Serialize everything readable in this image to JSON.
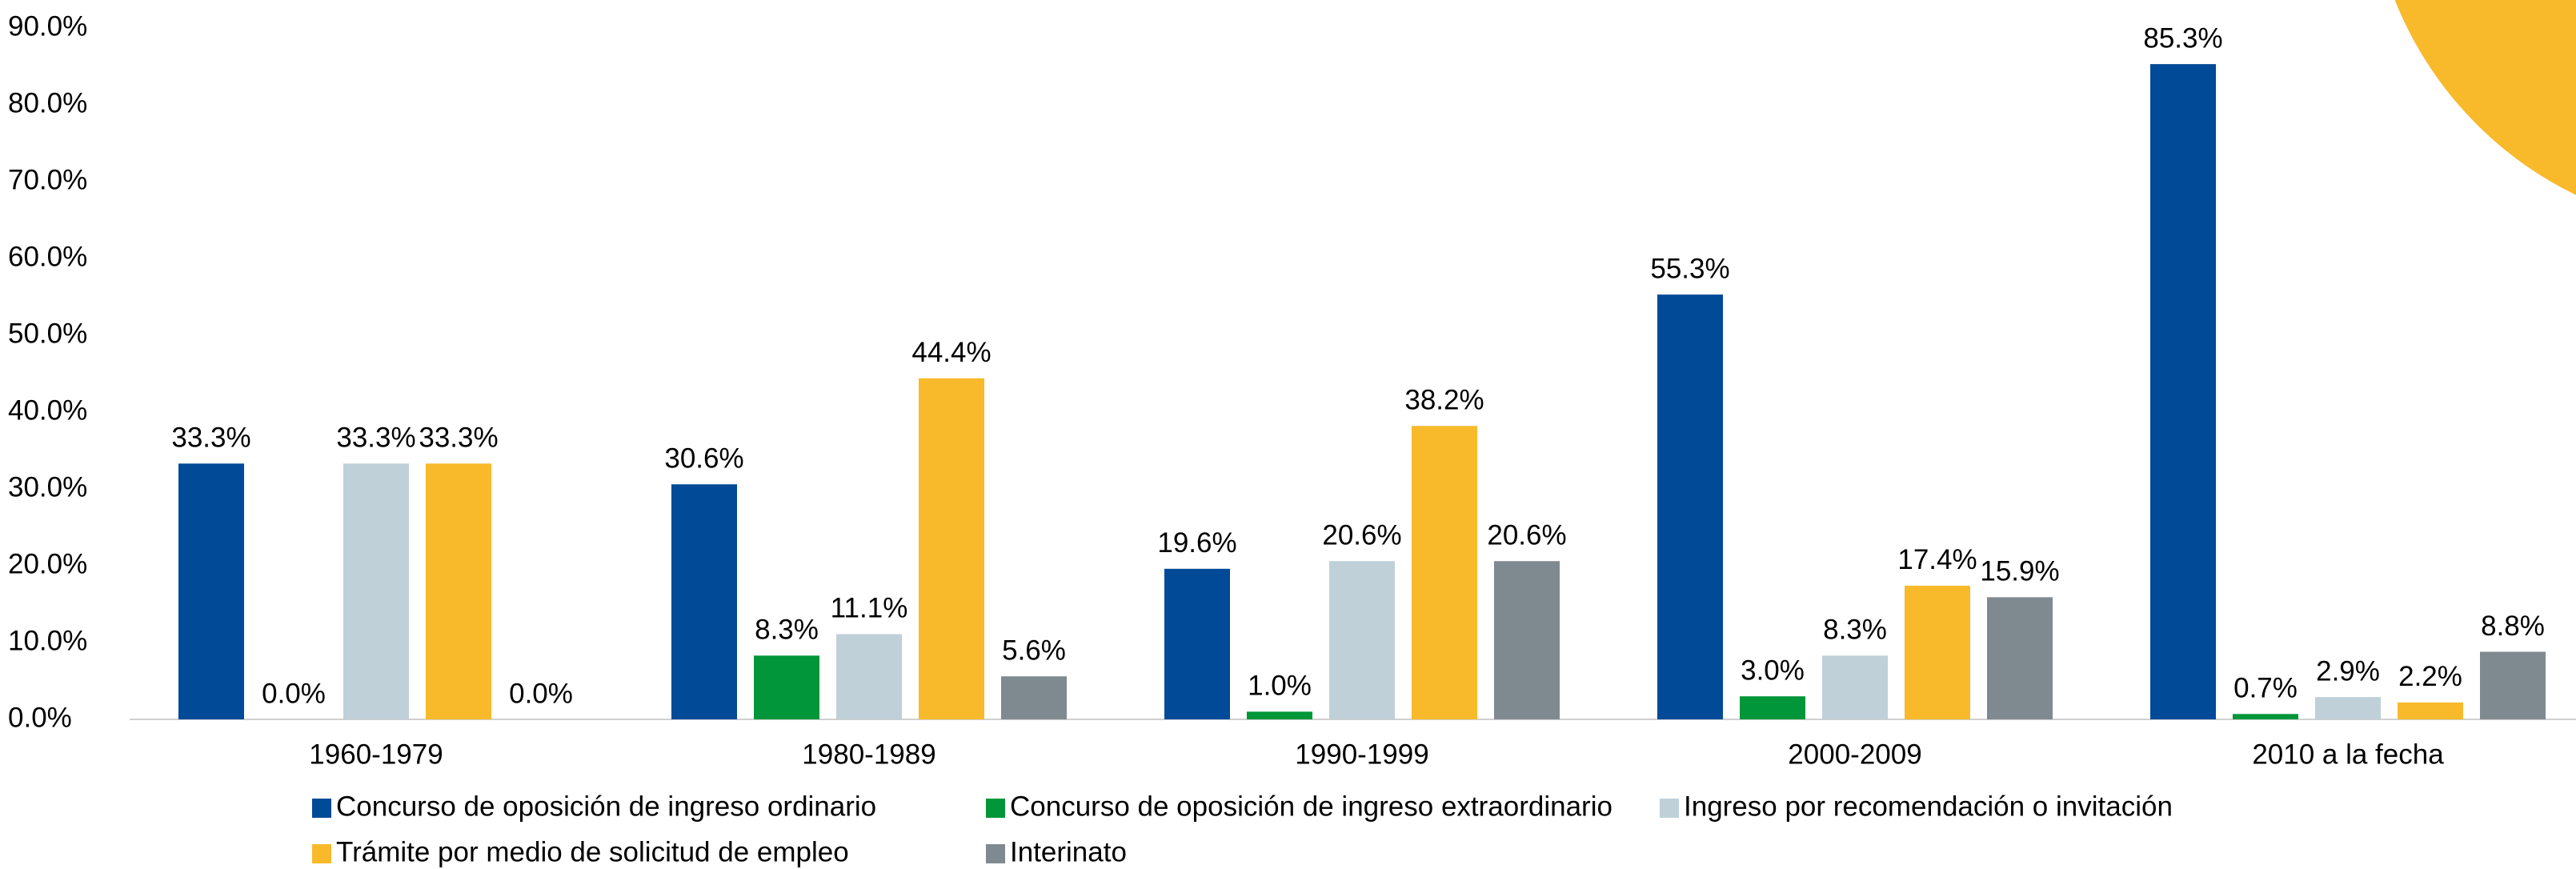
{
  "chart_data": {
    "type": "bar",
    "categories": [
      "1960-1979",
      "1980-1989",
      "1990-1999",
      "2000-2009",
      "2010 a la fecha"
    ],
    "series": [
      {
        "name": "Concurso de oposición de ingreso ordinario",
        "color": "#004a98",
        "values": [
          33.3,
          30.6,
          19.6,
          55.3,
          85.3
        ],
        "value_labels": [
          "33.3%",
          "30.6%",
          "19.6%",
          "55.3%",
          "85.3%"
        ]
      },
      {
        "name": "Concurso de oposición de ingreso extraordinario",
        "color": "#009639",
        "values": [
          0,
          8.3,
          1.0,
          3.0,
          0.7
        ],
        "value_labels": [
          "0.0%",
          "8.3%",
          "1.0%",
          "3.0%",
          "0.7%"
        ]
      },
      {
        "name": "Ingreso por recomendación o invitación",
        "color": "#bfd0d8",
        "values": [
          33.3,
          11.1,
          20.6,
          8.3,
          2.9
        ],
        "value_labels": [
          "33.3%",
          "11.1%",
          "20.6%",
          "8.3%",
          "2.9%"
        ]
      },
      {
        "name": "Trámite por medio de solicitud de empleo",
        "color": "#f8b92b",
        "values": [
          33.3,
          44.4,
          38.2,
          17.4,
          2.2
        ],
        "value_labels": [
          "33.3%",
          "44.4%",
          "38.2%",
          "17.4%",
          "2.2%"
        ]
      },
      {
        "name": "Interinato",
        "color": "#7f8a90",
        "values": [
          0,
          5.6,
          20.6,
          15.9,
          8.8
        ],
        "value_labels": [
          "0.0%",
          "5.6%",
          "20.6%",
          "15.9%",
          "8.8%"
        ]
      }
    ],
    "ylim": [
      0,
      90
    ],
    "yticks": [
      {
        "value": 0,
        "label": "0.0%"
      },
      {
        "value": 10,
        "label": "10.0%"
      },
      {
        "value": 20,
        "label": "20.0%"
      },
      {
        "value": 30,
        "label": "30.0%"
      },
      {
        "value": 40,
        "label": "40.0%"
      },
      {
        "value": 50,
        "label": "50.0%"
      },
      {
        "value": 60,
        "label": "60.0%"
      },
      {
        "value": 70,
        "label": "70.0%"
      },
      {
        "value": 80,
        "label": "80.0%"
      },
      {
        "value": 90,
        "label": "90.0%"
      }
    ],
    "grid": false,
    "legend": "bottom"
  }
}
